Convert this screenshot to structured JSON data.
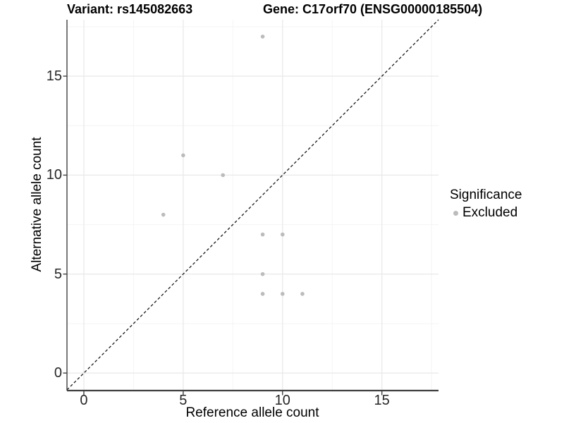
{
  "header": {
    "left_title": "Variant: rs145082663",
    "right_title": "Gene: C17orf70 (ENSG00000185504)"
  },
  "chart_data": {
    "type": "scatter",
    "xlabel": "Reference allele count",
    "ylabel": "Alternative allele count",
    "xlim": [
      -0.85,
      17.85
    ],
    "ylim": [
      -0.85,
      17.85
    ],
    "x_major_ticks": [
      0,
      5,
      10,
      15
    ],
    "y_major_ticks": [
      0,
      5,
      10,
      15
    ],
    "x_minor_ticks": [
      2.5,
      7.5,
      12.5,
      17.5
    ],
    "y_minor_ticks": [
      2.5,
      7.5,
      12.5,
      17.5
    ],
    "grid": "major+minor",
    "legend_position": "right",
    "identity_line": {
      "slope": 1,
      "intercept": 0,
      "style": "dashed",
      "color": "#1a1a1a"
    },
    "series": [
      {
        "name": "Excluded",
        "color": "#bcbcbc",
        "points": [
          [
            4,
            8
          ],
          [
            5,
            11
          ],
          [
            7,
            10
          ],
          [
            9,
            4
          ],
          [
            9,
            5
          ],
          [
            9,
            7
          ],
          [
            9,
            17
          ],
          [
            10,
            4
          ],
          [
            10,
            7
          ],
          [
            11,
            4
          ]
        ]
      }
    ]
  },
  "legend": {
    "title": "Significance",
    "items": [
      {
        "label": "Excluded",
        "color": "#bcbcbc"
      }
    ]
  },
  "colors": {
    "grid_major": "#e8e8e8",
    "grid_minor": "#f4f4f4",
    "axis_line": "#3f3f3f",
    "tick_text": "#262626",
    "point": "#bcbcbc"
  }
}
